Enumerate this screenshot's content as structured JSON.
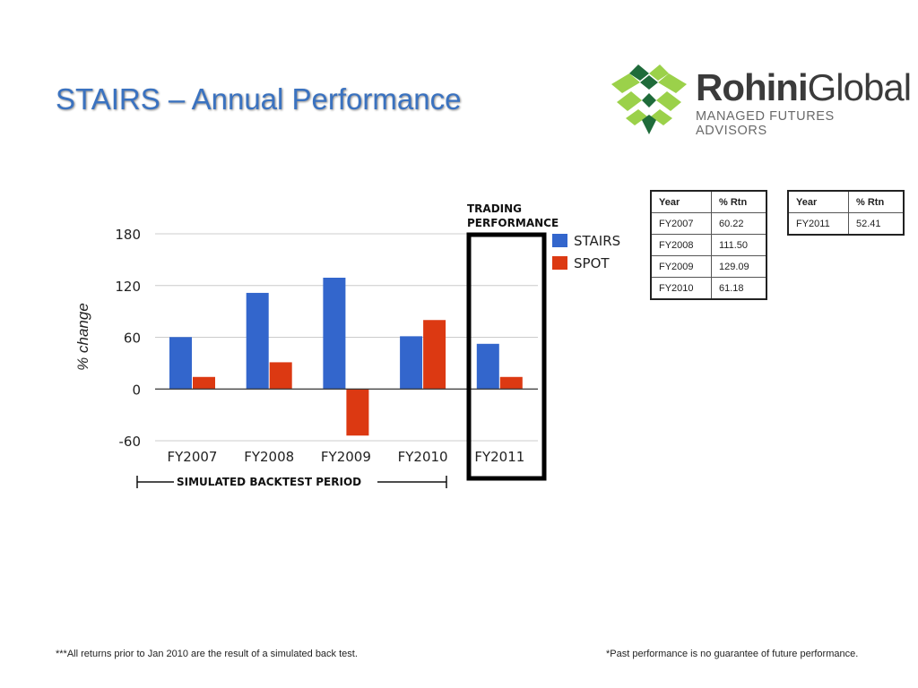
{
  "slide": {
    "title": "STAIRS – Annual Performance",
    "footnote_left": "***All returns prior to Jan 2010 are the result of a simulated back test.",
    "footnote_right": "*Past performance is no guarantee of future performance."
  },
  "logo": {
    "name_bold": "Rohini",
    "name_regular": "Global",
    "tagline": "MANAGED FUTURES ADVISORS",
    "colors": {
      "light_green": "#9bd14a",
      "dark_green": "#1f6b3a",
      "text": "#3b3b3b"
    }
  },
  "chart_data": {
    "type": "bar",
    "categories": [
      "FY2007",
      "FY2008",
      "FY2009",
      "FY2010",
      "FY2011"
    ],
    "series": [
      {
        "name": "STAIRS",
        "color": "#3366cc",
        "values": [
          60.22,
          111.5,
          129.09,
          61.18,
          52.41
        ]
      },
      {
        "name": "SPOT",
        "color": "#dc3912",
        "values": [
          14,
          31,
          -54,
          80,
          14
        ]
      }
    ],
    "title": "",
    "xlabel": "",
    "ylabel": "% change",
    "ylim": [
      -60,
      180
    ],
    "yticks": [
      180,
      120,
      60,
      0,
      -60
    ],
    "grid": true,
    "legend": "right",
    "annotations": {
      "highlight_label_line1": "TRADING",
      "highlight_label_line2": "PERFORMANCE",
      "highlight_category": "FY2011",
      "period_label": "SIMULATED BACKTEST PERIOD"
    }
  },
  "tables": {
    "backtest": {
      "headers": [
        "Year",
        "% Rtn"
      ],
      "rows": [
        [
          "FY2007",
          "60.22"
        ],
        [
          "FY2008",
          "111.50"
        ],
        [
          "FY2009",
          "129.09"
        ],
        [
          "FY2010",
          "61.18"
        ]
      ]
    },
    "live": {
      "headers": [
        "Year",
        "% Rtn"
      ],
      "rows": [
        [
          "FY2011",
          "52.41"
        ]
      ]
    }
  }
}
